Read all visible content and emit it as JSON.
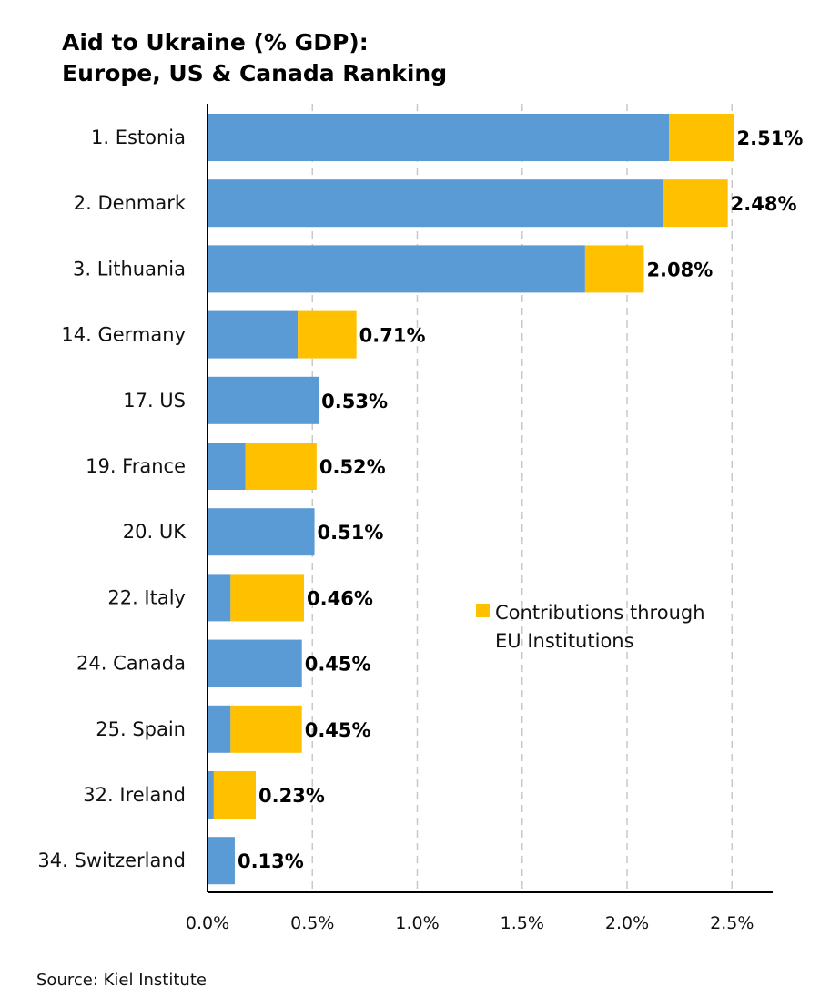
{
  "title_line1": "Aid to Ukraine (% GDP):",
  "title_line2": "Europe, US & Canada Ranking",
  "source": "Source: Kiel Institute",
  "colors": {
    "bilateral": "#5b9bd5",
    "eu": "#ffc000",
    "axis": "#000000",
    "grid": "#c8c8c8"
  },
  "chart_data": {
    "type": "bar",
    "orientation": "horizontal",
    "stacked": true,
    "categories": [
      "1. Estonia",
      "2. Denmark",
      "3. Lithuania",
      "14. Germany",
      "17. US",
      "19. France",
      "20. UK",
      "22. Italy",
      "24. Canada",
      "25. Spain",
      "32. Ireland",
      "34. Switzerland"
    ],
    "series": [
      {
        "name": "",
        "color": "#5b9bd5",
        "values": [
          2.2,
          2.17,
          1.8,
          0.43,
          0.53,
          0.18,
          0.51,
          0.11,
          0.45,
          0.11,
          0.03,
          0.13
        ]
      },
      {
        "name": "Contributions through EU Institutions",
        "color": "#ffc000",
        "values": [
          0.31,
          0.31,
          0.28,
          0.28,
          0,
          0.34,
          0,
          0.35,
          0,
          0.34,
          0.2,
          0
        ]
      }
    ],
    "data_labels": [
      "2.51%",
      "2.48%",
      "2.08%",
      "0.71%",
      "0.53%",
      "0.52%",
      "0.51%",
      "0.46%",
      "0.45%",
      "0.45%",
      "0.23%",
      "0.13%"
    ],
    "xlim": [
      0,
      2.7
    ],
    "xticks": [
      0,
      0.5,
      1.0,
      1.5,
      2.0,
      2.5
    ],
    "xtick_labels": [
      "0.0%",
      "0.5%",
      "1.0%",
      "1.5%",
      "2.0%",
      "2.5%"
    ],
    "grid": "vertical dashed",
    "legend": [
      "Contributions through",
      "EU Institutions"
    ],
    "legend_position": "right-middle"
  }
}
